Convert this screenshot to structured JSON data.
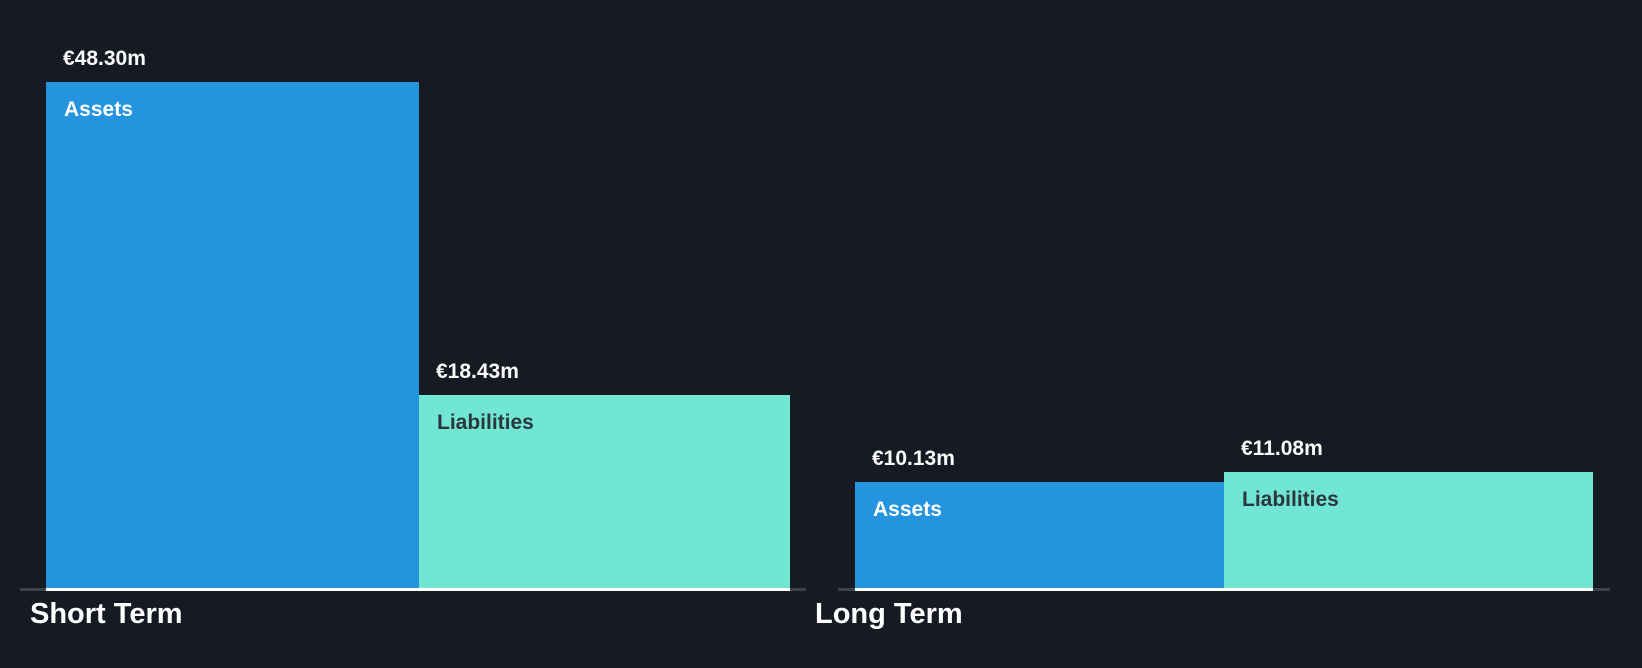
{
  "colors": {
    "background": "#151A23",
    "assets_bar": "#2594DE",
    "liabilities_bar": "#71E6D2",
    "axis_line": "#3C434D",
    "bar_underline": "#FFFFFF",
    "value_text": "#FAFAFA",
    "label_on_assets": "#FFFFFF",
    "label_on_liabilities": "#2B3640",
    "group_label_text": "#FFFFFF"
  },
  "chart_data": {
    "type": "bar",
    "title": "",
    "unit": "€m",
    "currency_symbol": "€",
    "ylim": [
      0,
      48.3
    ],
    "grid": false,
    "legend_position": "none",
    "categories": [
      "Short Term",
      "Long Term"
    ],
    "series": [
      {
        "name": "Assets",
        "values": [
          48.3,
          10.13
        ]
      },
      {
        "name": "Liabilities",
        "values": [
          18.43,
          11.08
        ]
      }
    ],
    "groups": [
      {
        "label": "Short Term",
        "bars": [
          {
            "name": "Assets",
            "value": 48.3,
            "display_value": "€48.30m"
          },
          {
            "name": "Liabilities",
            "value": 18.43,
            "display_value": "€18.43m"
          }
        ]
      },
      {
        "label": "Long Term",
        "bars": [
          {
            "name": "Assets",
            "value": 10.13,
            "display_value": "€10.13m"
          },
          {
            "name": "Liabilities",
            "value": 11.08,
            "display_value": "€11.08m"
          }
        ]
      }
    ]
  }
}
